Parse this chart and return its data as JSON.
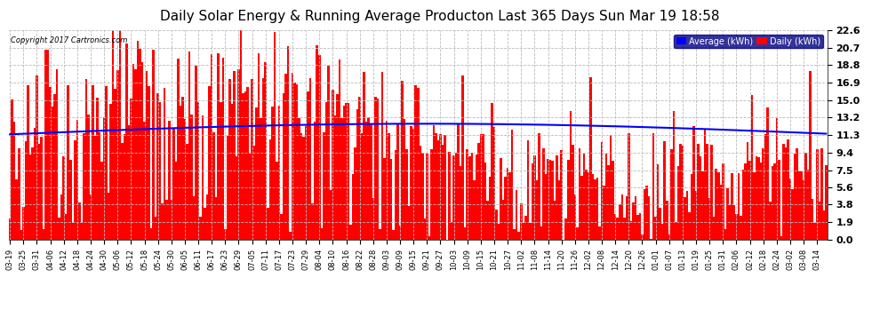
{
  "title": "Daily Solar Energy & Running Average Producton Last 365 Days Sun Mar 19 18:58",
  "copyright_text": "Copyright 2017 Cartronics.com",
  "legend_labels": [
    "Average (kWh)",
    "Daily (kWh)"
  ],
  "legend_colors": [
    "#0000ff",
    "#ff0000"
  ],
  "legend_bg": "#000080",
  "bar_color": "#ff0000",
  "line_color": "#0000ff",
  "yticks": [
    0.0,
    1.9,
    3.8,
    5.6,
    7.5,
    9.4,
    11.3,
    13.2,
    15.0,
    16.9,
    18.8,
    20.7,
    22.6
  ],
  "ylim": [
    0.0,
    22.6
  ],
  "background_color": "#ffffff",
  "grid_color": "#bbbbbb",
  "title_fontsize": 11,
  "figsize": [
    9.9,
    3.75
  ],
  "dpi": 100,
  "xtick_labels": [
    "03-19",
    "03-25",
    "03-31",
    "04-06",
    "04-12",
    "04-18",
    "04-24",
    "04-30",
    "05-06",
    "05-12",
    "05-18",
    "05-24",
    "05-30",
    "06-05",
    "06-11",
    "06-17",
    "06-23",
    "06-29",
    "07-05",
    "07-11",
    "07-17",
    "07-23",
    "07-29",
    "08-04",
    "08-10",
    "08-16",
    "08-22",
    "08-28",
    "09-03",
    "09-09",
    "09-15",
    "09-21",
    "09-27",
    "10-03",
    "10-09",
    "10-15",
    "10-21",
    "10-27",
    "11-02",
    "11-08",
    "11-14",
    "11-20",
    "11-26",
    "12-02",
    "12-08",
    "12-14",
    "12-20",
    "12-26",
    "01-01",
    "01-07",
    "01-13",
    "01-19",
    "01-25",
    "01-31",
    "02-06",
    "02-12",
    "02-18",
    "02-24",
    "03-02",
    "03-08",
    "03-14"
  ]
}
